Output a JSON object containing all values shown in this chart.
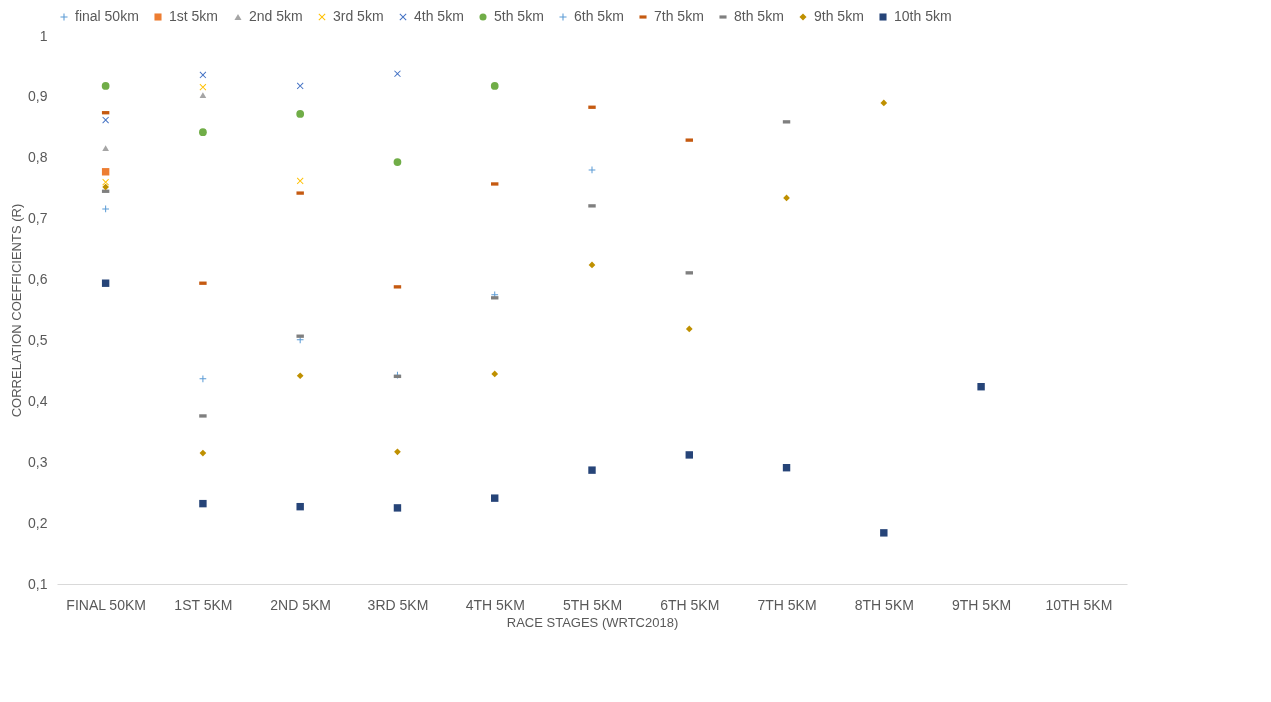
{
  "chart_data": {
    "type": "scatter",
    "xlabel": "RACE STAGES (WRTC2018)",
    "ylabel": "CORRELATION COEFFICIENTS (R)",
    "categories": [
      "FINAL 50KM",
      "1ST 5KM",
      "2ND 5KM",
      "3RD 5KM",
      "4TH 5KM",
      "5TH 5KM",
      "6TH 5KM",
      "7TH 5KM",
      "8TH 5KM",
      "9TH 5KM",
      "10TH 5KM"
    ],
    "ylim": [
      0.1,
      1
    ],
    "yticks": [
      {
        "value": 0.1,
        "label": "0,1"
      },
      {
        "value": 0.2,
        "label": "0,2"
      },
      {
        "value": 0.3,
        "label": "0,3"
      },
      {
        "value": 0.4,
        "label": "0,4"
      },
      {
        "value": 0.5,
        "label": "0,5"
      },
      {
        "value": 0.6,
        "label": "0,6"
      },
      {
        "value": 0.7,
        "label": "0,7"
      },
      {
        "value": 0.8,
        "label": "0,8"
      },
      {
        "value": 0.9,
        "label": "0,9"
      },
      {
        "value": 1,
        "label": "1"
      }
    ],
    "grid": false,
    "legend": "top",
    "series": [
      {
        "name": "final 50km",
        "marker": "plus",
        "color": "#5b9bd5",
        "values": [
          null,
          null,
          null,
          null,
          null,
          null,
          null,
          null,
          null,
          null,
          null
        ]
      },
      {
        "name": "1st 5km",
        "marker": "square",
        "color": "#ed7d31",
        "values": [
          0.777,
          null,
          null,
          null,
          null,
          null,
          null,
          null,
          null,
          null,
          null
        ]
      },
      {
        "name": "2nd 5km",
        "marker": "triangle",
        "color": "#a5a5a5",
        "values": [
          0.816,
          0.903,
          null,
          null,
          null,
          null,
          null,
          null,
          null,
          null,
          null
        ]
      },
      {
        "name": "3rd 5km",
        "marker": "x",
        "color": "#ffc000",
        "values": [
          0.76,
          0.916,
          0.762,
          null,
          null,
          null,
          null,
          null,
          null,
          null,
          null
        ]
      },
      {
        "name": "4th 5km",
        "marker": "x",
        "color": "#4472c4",
        "values": [
          0.862,
          0.936,
          0.918,
          0.938,
          null,
          null,
          null,
          null,
          null,
          null,
          null
        ]
      },
      {
        "name": "5th 5km",
        "marker": "circle",
        "color": "#70ad47",
        "values": [
          0.918,
          0.842,
          0.872,
          0.793,
          0.918,
          null,
          null,
          null,
          null,
          null,
          null
        ]
      },
      {
        "name": "6th 5km",
        "marker": "plus",
        "color": "#5b9bd5",
        "values": [
          0.716,
          0.437,
          0.501,
          0.443,
          0.575,
          0.78,
          null,
          null,
          null,
          null,
          null
        ]
      },
      {
        "name": "7th 5km",
        "marker": "square",
        "color": "#c55a11",
        "values": [
          0.874,
          0.594,
          0.742,
          0.588,
          0.757,
          0.883,
          0.829,
          null,
          null,
          null,
          null
        ]
      },
      {
        "name": "8th 5km",
        "marker": "square",
        "color": "#7f7f7f",
        "values": [
          0.745,
          0.376,
          0.507,
          0.441,
          0.57,
          0.721,
          0.611,
          0.859,
          null,
          null,
          null
        ]
      },
      {
        "name": "9th 5km",
        "marker": "diamond",
        "color": "#bf9000",
        "values": [
          0.752,
          0.315,
          0.442,
          0.317,
          0.445,
          0.624,
          0.519,
          0.734,
          0.89,
          null,
          null
        ]
      },
      {
        "name": "10th 5km",
        "marker": "square",
        "color": "#264478",
        "values": [
          0.594,
          0.232,
          0.227,
          0.225,
          0.241,
          0.287,
          0.312,
          0.291,
          0.184,
          0.424,
          null
        ]
      }
    ]
  }
}
